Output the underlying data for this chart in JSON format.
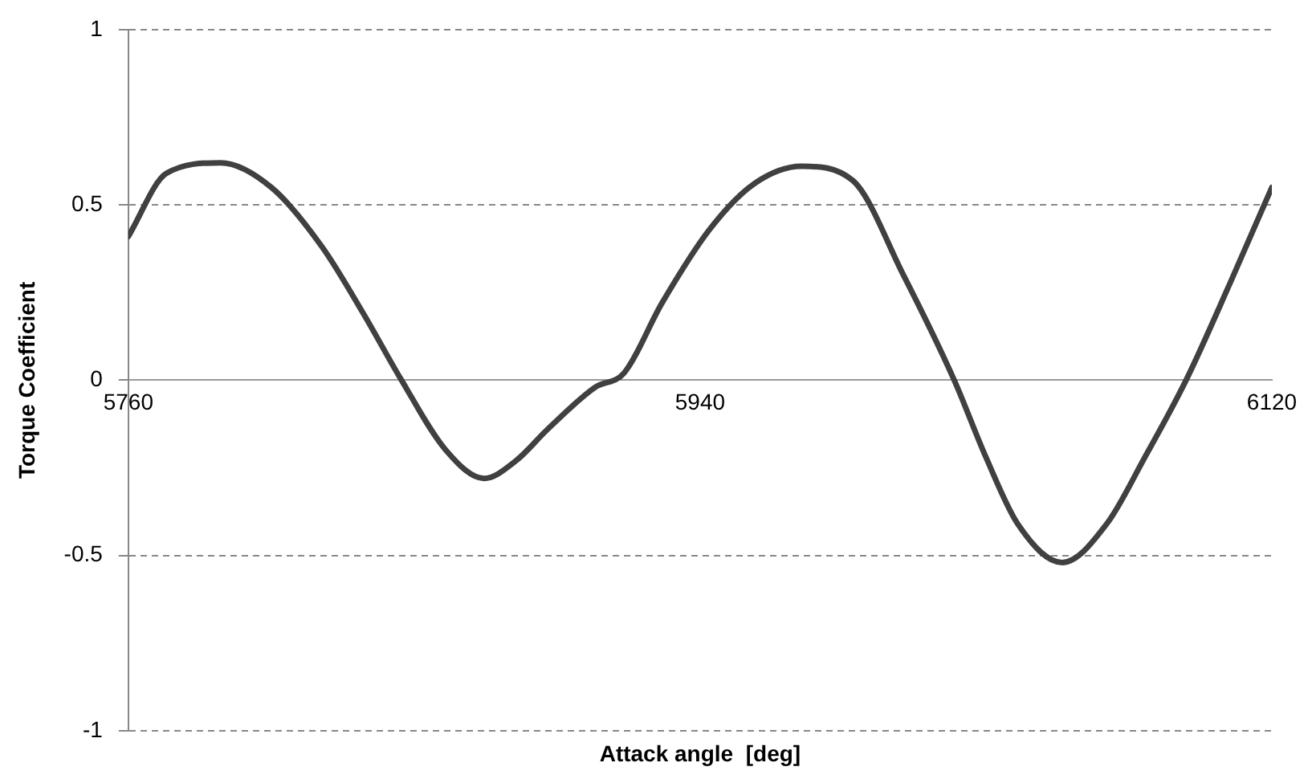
{
  "chart_data": {
    "type": "line",
    "xlabel": "Attack angle  [deg]",
    "ylabel": "Torque Coefficient",
    "x": [
      5760,
      5772,
      5789,
      5805,
      5821,
      5834,
      5846,
      5860,
      5872,
      5882,
      5892,
      5907,
      5916,
      5928,
      5943,
      5957,
      5972,
      5988,
      6004,
      6020,
      6030,
      6040,
      6054,
      6068,
      6080,
      6093,
      6107,
      6120
    ],
    "values": [
      0.41,
      0.59,
      0.62,
      0.55,
      0.38,
      0.19,
      0,
      -0.2,
      -0.28,
      -0.23,
      -0.14,
      -0.02,
      0.02,
      0.22,
      0.43,
      0.56,
      0.61,
      0.57,
      0.3,
      0,
      -0.22,
      -0.41,
      -0.52,
      -0.41,
      -0.22,
      0,
      0.28,
      0.55
    ],
    "color": "#404040",
    "xlim": [
      5760,
      6120
    ],
    "xticks": [
      5760,
      5940,
      6120
    ],
    "ylim": [
      -1,
      1
    ],
    "yticks": [
      -1,
      -0.5,
      0,
      0.5,
      1
    ],
    "grid": "y",
    "legend": false,
    "marker": "none",
    "line_style": "solid"
  }
}
